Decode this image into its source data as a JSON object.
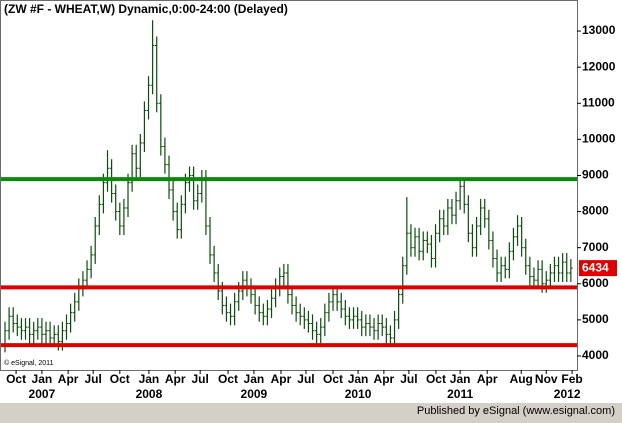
{
  "chart_data": {
    "type": "ohlc",
    "title": "(ZW #F - WHEAT,W) Dynamic,0:00-24:00 (Delayed)",
    "watermark": "© eSignal, 2011",
    "footer": "Published by eSignal (www.esignal.com)",
    "color": "#0b4d0b",
    "ylim": [
      3612,
      13860
    ],
    "yticks": [
      4000,
      5000,
      6000,
      7000,
      8000,
      9000,
      10000,
      11000,
      12000,
      13000
    ],
    "xlim": [
      -1.22,
      139.5
    ],
    "xticks": [
      {
        "value": 2.7,
        "label": "Oct"
      },
      {
        "value": 9.0,
        "label": "Jan"
      },
      {
        "value": 15.4,
        "label": "Apr"
      },
      {
        "value": 21.5,
        "label": "Jul"
      },
      {
        "value": 28.0,
        "label": "Oct"
      },
      {
        "value": 35.1,
        "label": "Jan"
      },
      {
        "value": 41.5,
        "label": "Apr"
      },
      {
        "value": 47.6,
        "label": "Jul"
      },
      {
        "value": 54.4,
        "label": "Oct"
      },
      {
        "value": 60.7,
        "label": "Jan"
      },
      {
        "value": 67.3,
        "label": "Apr"
      },
      {
        "value": 73.4,
        "label": "Jul"
      },
      {
        "value": 80.0,
        "label": "Oct"
      },
      {
        "value": 86.1,
        "label": "Jan"
      },
      {
        "value": 92.4,
        "label": "Apr"
      },
      {
        "value": 98.5,
        "label": "Jul"
      },
      {
        "value": 105.1,
        "label": "Oct"
      },
      {
        "value": 111.0,
        "label": "Jan"
      },
      {
        "value": 117.6,
        "label": "Apr"
      },
      {
        "value": 125.9,
        "label": "Aug"
      },
      {
        "value": 132.0,
        "label": "Nov"
      },
      {
        "value": 138.3,
        "label": "Feb"
      }
    ],
    "year_ticks": [
      {
        "value": 9.0,
        "label": "2007"
      },
      {
        "value": 35.1,
        "label": "2008"
      },
      {
        "value": 60.7,
        "label": "2009"
      },
      {
        "value": 86.1,
        "label": "2010"
      },
      {
        "value": 111.0,
        "label": "2011"
      },
      {
        "value": 137.1,
        "label": "2012"
      }
    ],
    "hlines": [
      {
        "value": 8900,
        "color": "#0a8a0a"
      },
      {
        "value": 5900,
        "color": "#e00000"
      },
      {
        "value": 4300,
        "color": "#e00000"
      }
    ],
    "last_label_color": "#e00000",
    "open": [
      4300,
      4700,
      5100,
      4900,
      4800,
      4700,
      4800,
      4600,
      4700,
      4800,
      4600,
      4700,
      4500,
      4600,
      4400,
      4700,
      4900,
      5200,
      5500,
      5900,
      6100,
      6400,
      6800,
      7600,
      8200,
      8800,
      9200,
      8500,
      8000,
      7600,
      8100,
      8800,
      9600,
      9200,
      9900,
      10800,
      11500,
      12600,
      11000,
      9800,
      9300,
      8600,
      8000,
      7500,
      8200,
      8800,
      9000,
      8300,
      8500,
      8900,
      7600,
      6800,
      6300,
      5800,
      5400,
      5200,
      5100,
      5500,
      5800,
      6100,
      5900,
      5700,
      5400,
      5200,
      5100,
      5300,
      5600,
      5900,
      6200,
      6300,
      5700,
      5400,
      5200,
      5100,
      5000,
      4900,
      4700,
      4600,
      4800,
      5200,
      5500,
      5700,
      5500,
      5300,
      5100,
      5000,
      5100,
      5000,
      4800,
      4900,
      4800,
      4700,
      4900,
      4800,
      4600,
      4500,
      5000,
      5700,
      6500,
      7400,
      7000,
      7300,
      6900,
      7200,
      7100,
      6700,
      7400,
      7800,
      7600,
      8100,
      7900,
      8300,
      8700,
      8200,
      7400,
      7000,
      7600,
      8100,
      7800,
      7200,
      6700,
      6300,
      6500,
      6400,
      6900,
      7300,
      7600,
      7000,
      6500,
      6200,
      6100,
      6400,
      6000,
      6100,
      6300,
      6500,
      6300,
      6600,
      6300
    ],
    "high": [
      4950,
      5350,
      5350,
      5150,
      5050,
      5050,
      5050,
      4950,
      5050,
      5050,
      4950,
      4950,
      4850,
      4850,
      4950,
      5150,
      5450,
      5750,
      6150,
      6350,
      6650,
      7050,
      7850,
      8450,
      9050,
      9700,
      9450,
      8750,
      8250,
      8350,
      9050,
      9850,
      9850,
      10150,
      11050,
      11750,
      13300,
      12850,
      11250,
      10050,
      9550,
      8850,
      8250,
      8450,
      9050,
      9250,
      9250,
      8750,
      9150,
      9150,
      7850,
      7050,
      6550,
      6050,
      5650,
      5450,
      5750,
      6050,
      6350,
      6350,
      6150,
      5950,
      5650,
      5450,
      5550,
      5850,
      6150,
      6450,
      6550,
      6550,
      5950,
      5650,
      5450,
      5350,
      5250,
      5150,
      4950,
      5050,
      5450,
      5750,
      5950,
      5950,
      5750,
      5550,
      5350,
      5350,
      5350,
      5250,
      5150,
      5150,
      5050,
      5150,
      5150,
      5050,
      4850,
      5250,
      5950,
      6750,
      8400,
      7650,
      7550,
      7550,
      7450,
      7450,
      7350,
      7650,
      8050,
      8050,
      8350,
      8350,
      8550,
      8900,
      8850,
      8450,
      7650,
      7850,
      8350,
      8350,
      8050,
      7450,
      6950,
      6750,
      6750,
      7150,
      7550,
      7900,
      7850,
      7250,
      6750,
      6450,
      6650,
      6650,
      6350,
      6550,
      6750,
      6750,
      6850,
      6850,
      6684
    ],
    "low": [
      4100,
      4450,
      4650,
      4550,
      4450,
      4450,
      4350,
      4350,
      4450,
      4350,
      4350,
      4250,
      4250,
      4150,
      4150,
      4450,
      4650,
      4950,
      5250,
      5650,
      5850,
      6150,
      6550,
      7350,
      7950,
      8550,
      8250,
      7750,
      7350,
      7350,
      7850,
      8550,
      8950,
      8950,
      9650,
      10550,
      11250,
      10750,
      9550,
      9050,
      8350,
      7750,
      7250,
      7250,
      7950,
      8550,
      8050,
      8050,
      8250,
      7350,
      6550,
      6050,
      5550,
      5150,
      4950,
      4850,
      4850,
      5250,
      5550,
      5650,
      5450,
      5150,
      4950,
      4850,
      4850,
      5050,
      5350,
      5650,
      5950,
      5450,
      5150,
      4950,
      4850,
      4750,
      4650,
      4450,
      4350,
      4350,
      4550,
      4950,
      5250,
      5250,
      5050,
      4850,
      4750,
      4750,
      4750,
      4550,
      4550,
      4550,
      4450,
      4450,
      4550,
      4350,
      4350,
      4250,
      4750,
      5450,
      6250,
      6750,
      6750,
      6650,
      6650,
      6850,
      6450,
      6450,
      7150,
      7350,
      7350,
      7650,
      7650,
      8050,
      7950,
      7150,
      6750,
      6750,
      7350,
      7550,
      6950,
      6450,
      6050,
      6050,
      6150,
      6150,
      6650,
      7050,
      6750,
      6250,
      5950,
      5850,
      5850,
      5750,
      5750,
      5850,
      6050,
      6050,
      6050,
      6050,
      6050
    ],
    "close": [
      4700,
      5100,
      4900,
      4800,
      4700,
      4800,
      4600,
      4700,
      4800,
      4600,
      4700,
      4500,
      4600,
      4400,
      4700,
      4900,
      5200,
      5500,
      5900,
      6100,
      6400,
      6800,
      7600,
      8200,
      8800,
      9200,
      8500,
      8000,
      7600,
      8100,
      8800,
      9600,
      9200,
      9900,
      10800,
      11500,
      12600,
      11000,
      9800,
      9300,
      8600,
      8000,
      7500,
      8200,
      8800,
      9000,
      8300,
      8500,
      8900,
      7600,
      6800,
      6300,
      5800,
      5400,
      5200,
      5100,
      5500,
      5800,
      6100,
      5900,
      5700,
      5400,
      5200,
      5100,
      5300,
      5600,
      5900,
      6200,
      6300,
      5700,
      5400,
      5200,
      5100,
      5000,
      4900,
      4700,
      4600,
      4800,
      5200,
      5500,
      5700,
      5500,
      5300,
      5100,
      5000,
      5100,
      5000,
      4800,
      4900,
      4800,
      4700,
      4900,
      4800,
      4600,
      4500,
      5000,
      5700,
      6500,
      7400,
      7000,
      7300,
      6900,
      7200,
      7100,
      6700,
      7400,
      7800,
      7600,
      8100,
      7900,
      8300,
      8700,
      8200,
      7400,
      7000,
      7600,
      8100,
      7800,
      7200,
      6700,
      6300,
      6500,
      6400,
      6900,
      7300,
      7600,
      7000,
      6500,
      6200,
      6100,
      6400,
      6000,
      6100,
      6300,
      6500,
      6300,
      6600,
      6300,
      6434
    ]
  }
}
